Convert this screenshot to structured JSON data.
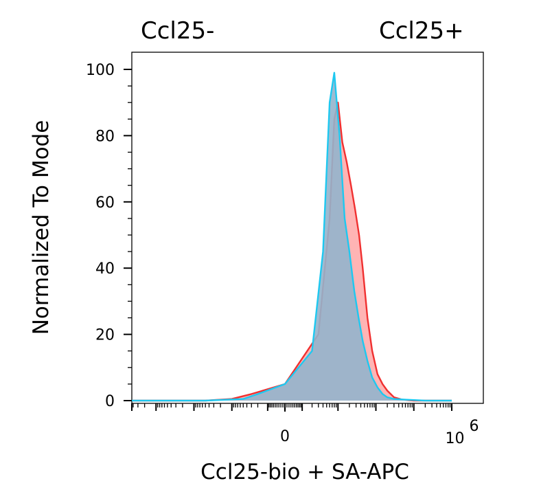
{
  "chart_data": {
    "type": "area",
    "xlabel": "Ccl25-bio + SA-APC",
    "ylabel": "Normalized To Mode",
    "ylim": [
      0,
      100
    ],
    "y_ticks": [
      "0",
      "20",
      "40",
      "60",
      "80",
      "100"
    ],
    "x_tick_labels": {
      "zero": "0",
      "max_base": "10",
      "max_exp": "6"
    },
    "x_scale": "biexponential",
    "grid": false,
    "series": [
      {
        "name": "Ccl25-",
        "line_color": "#1ec8f0",
        "fill_color": "#94b4cc",
        "x": [
          -900000,
          -200000,
          -5000,
          -500,
          -200,
          0,
          200,
          400,
          600,
          800,
          1100,
          1500,
          2000,
          2700,
          3500,
          4500,
          6000,
          8000,
          11000,
          15000,
          20000,
          30000,
          60000,
          200000,
          1000000
        ],
        "y": [
          0,
          0,
          0,
          0.5,
          2,
          5,
          15,
          45,
          90,
          99,
          80,
          55,
          45,
          33,
          25,
          18,
          12,
          7,
          4,
          2,
          1,
          0.5,
          0.3,
          0,
          0
        ]
      },
      {
        "name": "Ccl25+",
        "line_color": "#f03030",
        "fill_color": "#ffb0b0",
        "x": [
          -900000,
          -200000,
          -5000,
          -1000,
          -300,
          0,
          300,
          600,
          800,
          1000,
          1300,
          1700,
          2200,
          2800,
          3600,
          4500,
          6000,
          8000,
          11000,
          15000,
          20000,
          30000,
          50000,
          100000,
          1000000
        ],
        "y": [
          0,
          0,
          0,
          0.5,
          2,
          5,
          20,
          55,
          85,
          90,
          78,
          72,
          65,
          58,
          50,
          40,
          25,
          15,
          8,
          5,
          3,
          1,
          0.3,
          0,
          0
        ]
      }
    ],
    "legend": [
      {
        "label": "Ccl25-",
        "color": "#4a7fc2",
        "position": "top-left"
      },
      {
        "label": "Ccl25+",
        "color": "#e81212",
        "position": "top-right"
      }
    ]
  }
}
